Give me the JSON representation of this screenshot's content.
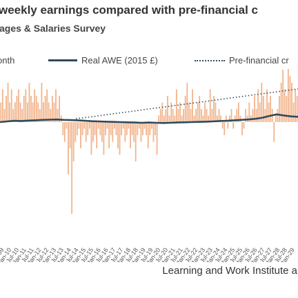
{
  "header": {
    "title": "weekly earnings compared with pre-financial c",
    "subtitle": "ages & Salaries Survey"
  },
  "legend": [
    {
      "label": "onth",
      "style": "bar"
    },
    {
      "label": "Real AWE (2015 £)",
      "style": "line"
    },
    {
      "label": "Pre-financial cr",
      "style": "dotted"
    }
  ],
  "footer": {
    "source": "Learning and Work Institute ar"
  },
  "colors": {
    "bars": "#f2b48c",
    "line": "#2e4a5c",
    "trend": "#2e4a5c"
  },
  "chart_data": {
    "type": "bar",
    "x_tick_labels": [
      "Jul-09",
      "Jan-10",
      "Jul-10",
      "Jan-11",
      "Jul-11",
      "Jan-12",
      "Jul-12",
      "Jan-13",
      "Jul-13",
      "Jan-14",
      "Jul-14",
      "Jan-15",
      "Jul-15",
      "Jan-16",
      "Jul-16",
      "Jan-17",
      "Jul-17",
      "Jan-18",
      "Jul-18",
      "Jan-19",
      "Jul-19",
      "Jan-20",
      "Jul-20",
      "Jan-21",
      "Jul-21",
      "Jan-22",
      "Jul-22",
      "Jan-23",
      "Jul-23",
      "Jan-24",
      "Jul-24",
      "Jan-25",
      "Jul-25",
      "Jan-26",
      "Jul-26",
      "Jan-27",
      "Jul-27",
      "Jan-28",
      "Jul-28",
      "Jan-29"
    ],
    "series": [
      {
        "name": "onth",
        "type": "bar",
        "values": [
          3,
          5,
          2,
          4,
          6,
          3,
          5,
          2,
          3,
          4,
          5,
          3,
          2,
          4,
          5,
          3,
          6,
          4,
          3,
          5,
          4,
          3,
          2,
          6,
          3,
          4,
          5,
          3,
          2,
          4,
          3,
          5,
          2,
          4,
          1,
          -2,
          -3,
          -1,
          -8,
          -4,
          -14,
          -6,
          -3,
          -2,
          -1,
          -4,
          -2,
          -1,
          -3,
          -2,
          -1,
          -5,
          -3,
          -2,
          -4,
          -1,
          -2,
          -3,
          -5,
          -2,
          -1,
          -4,
          -2,
          -3,
          -1,
          -2,
          -4,
          -5,
          -2,
          -1,
          -3,
          -2,
          -1,
          -4,
          -2,
          -3,
          -6,
          -2,
          -1,
          -3,
          -2,
          -1,
          -2,
          -4,
          -2,
          -1,
          -3,
          -2,
          -5,
          1,
          2,
          3,
          1,
          2,
          4,
          1,
          3,
          2,
          1,
          5,
          2,
          3,
          1,
          2,
          4,
          6,
          3,
          2,
          5,
          1,
          2,
          3,
          4,
          2,
          1,
          3,
          2,
          1,
          5,
          2,
          4,
          3,
          1,
          2,
          1,
          -1,
          -2,
          1,
          -1,
          1,
          2,
          -1,
          1,
          2,
          3,
          1,
          -2,
          -1,
          2,
          1,
          3,
          1,
          2,
          4,
          2,
          5,
          3,
          6,
          4,
          2,
          5,
          3,
          4,
          2,
          -3,
          1,
          2,
          4,
          6,
          8,
          5,
          4,
          10,
          7,
          6,
          3,
          5,
          4
        ],
        "extremes": {
          "max_label": "high spike",
          "min": -14
        }
      },
      {
        "name": "Real AWE (2015 £)",
        "type": "line",
        "values": [
          0,
          0.3,
          0.6,
          0.5,
          0.7,
          0.8,
          1.0,
          1.1,
          1.2,
          1.0,
          0.9,
          0.8,
          0.6,
          0.4,
          0.3,
          0.2,
          0.1,
          0.0,
          -0.1,
          -0.2,
          -0.3,
          -0.2,
          -0.3,
          -0.4,
          -0.3,
          -0.2,
          -0.1,
          0,
          0.1,
          0.2,
          0.3,
          0.5,
          0.6,
          0.8,
          1.0,
          1.2,
          1.5,
          2.0,
          2.8,
          3.5,
          3.0,
          2.6,
          2.4
        ]
      },
      {
        "name": "Pre-financial cr",
        "type": "line",
        "style": "dotted",
        "values": [
          0.0,
          0.6,
          1.3,
          2.0,
          2.7,
          3.4,
          4.1,
          4.8,
          5.5,
          6.2,
          6.9,
          7.6,
          8.3,
          9.0,
          9.7,
          10.4,
          11.1,
          11.8,
          12.5,
          13.2,
          13.9
        ]
      }
    ]
  }
}
